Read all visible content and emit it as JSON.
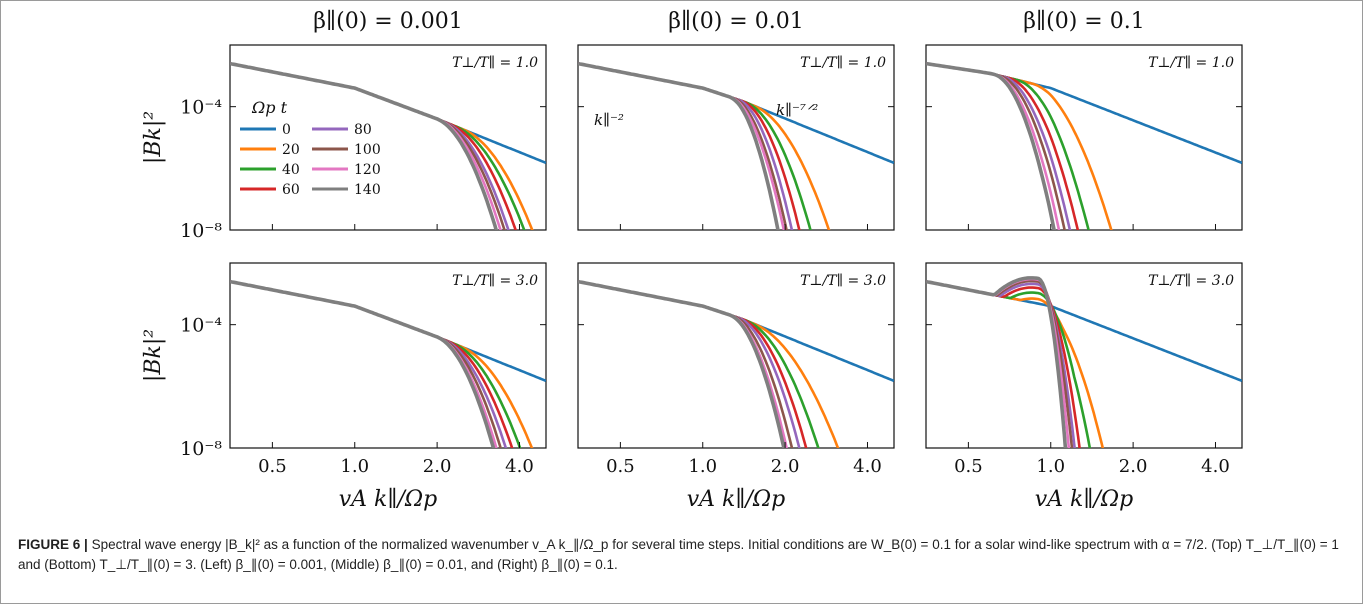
{
  "figure": {
    "caption_label": "FIGURE 6 |",
    "caption_text": "Spectral wave energy |B_k|² as a function of the normalized wavenumber v_A k_∥/Ω_p for several time steps. Initial conditions are W_B(0) = 0.1 for a solar wind-like spectrum with α = 7/2. (Top) T_⊥/T_∥(0) = 1 and (Bottom) T_⊥/T_∥(0) = 3. (Left) β_∥(0) = 0.001, (Middle) β_∥(0) = 0.01, and (Right) β_∥(0) = 0.1.",
    "column_titles": [
      "β∥(0) = 0.001",
      "β∥(0) = 0.01",
      "β∥(0) = 0.1"
    ],
    "row_labels": [
      "T⊥/T∥ = 1.0",
      "T⊥/T∥ = 3.0"
    ],
    "ylabel": "|Bk|²",
    "xlabel": "vA k∥/Ωp",
    "legend_title": "Ωp t",
    "annotations": {
      "k2": "k∥⁻²",
      "k72": "k∥⁻⁷ᐟ²"
    }
  },
  "colors": {
    "0": "#1f77b4",
    "20": "#ff7f0e",
    "40": "#2ca02c",
    "60": "#d62728",
    "80": "#9467bd",
    "100": "#8c564b",
    "120": "#e377c2",
    "140": "#7f7f7f"
  },
  "chart_data": {
    "type": "line",
    "log_axes": true,
    "ylim": [
      1e-08,
      0.01
    ],
    "yticks": [
      "10⁻⁴",
      "10⁻⁸"
    ],
    "series_names": [
      "0",
      "20",
      "40",
      "60",
      "80",
      "100",
      "120",
      "140"
    ],
    "panels": [
      {
        "column": "β∥(0) = 0.001",
        "row": "T⊥/T∥ = 1.0",
        "xlim": [
          0.35,
          5.0
        ],
        "xticks": [
          0.5,
          1.0,
          2.0,
          4.0
        ],
        "xtick_labels": [
          "0.5",
          "1.0",
          "2.0",
          "4.0"
        ],
        "label": "T⊥/T∥ = 1.0",
        "has_legend": true,
        "base_curve": [
          [
            0.35,
            0.0025
          ],
          [
            1.0,
            0.0004
          ],
          [
            2.0,
            4e-05
          ],
          [
            5.0,
            1.5e-06
          ]
        ],
        "cutoffs": [
          [
            20,
            2.5,
            5.0
          ],
          [
            40,
            2.35,
            4.6
          ],
          [
            60,
            2.25,
            4.2
          ],
          [
            80,
            2.15,
            3.9
          ],
          [
            100,
            2.1,
            3.75
          ],
          [
            120,
            2.05,
            3.6
          ],
          [
            140,
            2.0,
            3.45
          ]
        ]
      },
      {
        "column": "β∥(0) = 0.01",
        "row": "T⊥/T∥ = 1.0",
        "xlim": [
          0.35,
          5.0
        ],
        "xticks": [
          0.5,
          1.0,
          2.0,
          4.0
        ],
        "xtick_labels": [
          "0.5",
          "1.0",
          "2.0",
          "4.0"
        ],
        "label": "T⊥/T∥ = 1.0",
        "has_slope_labels": true,
        "base_curve": [
          [
            0.35,
            0.0025
          ],
          [
            1.0,
            0.0004
          ],
          [
            1.4,
            0.00015
          ],
          [
            5.0,
            1.5e-06
          ]
        ],
        "cutoffs": [
          [
            20,
            1.55,
            3.0
          ],
          [
            40,
            1.45,
            2.5
          ],
          [
            60,
            1.4,
            2.25
          ],
          [
            80,
            1.35,
            2.1
          ],
          [
            100,
            1.3,
            2.0
          ],
          [
            120,
            1.27,
            1.95
          ],
          [
            140,
            1.25,
            1.85
          ]
        ]
      },
      {
        "column": "β∥(0) = 0.1",
        "row": "T⊥/T∥ = 1.0",
        "xlim": [
          0.35,
          5.0
        ],
        "xticks": [
          0.5,
          1.0,
          2.0,
          4.0
        ],
        "xtick_labels": [
          "0.5",
          "1.0",
          "2.0",
          "4.0"
        ],
        "label": "T⊥/T∥ = 1.0",
        "base_curve": [
          [
            0.35,
            0.0025
          ],
          [
            0.6,
            0.0012
          ],
          [
            1.0,
            0.0004
          ],
          [
            5.0,
            1.5e-06
          ]
        ],
        "cutoffs": [
          [
            20,
            0.85,
            1.6
          ],
          [
            40,
            0.75,
            1.3
          ],
          [
            60,
            0.7,
            1.18
          ],
          [
            80,
            0.67,
            1.1
          ],
          [
            100,
            0.65,
            1.05
          ],
          [
            120,
            0.63,
            1.0
          ],
          [
            140,
            0.62,
            0.96
          ]
        ]
      },
      {
        "column": "β∥(0) = 0.001",
        "row": "T⊥/T∥ = 3.0",
        "xlim": [
          0.35,
          5.0
        ],
        "xticks": [
          0.5,
          1.0,
          2.0,
          4.0
        ],
        "xtick_labels": [
          "0.5",
          "1.0",
          "2.0",
          "4.0"
        ],
        "label": "T⊥/T∥ = 3.0",
        "base_curve": [
          [
            0.35,
            0.0025
          ],
          [
            1.0,
            0.0004
          ],
          [
            2.0,
            4e-05
          ],
          [
            5.0,
            1.5e-06
          ]
        ],
        "cutoffs": [
          [
            20,
            2.45,
            5.0
          ],
          [
            40,
            2.3,
            4.4
          ],
          [
            60,
            2.2,
            4.05
          ],
          [
            80,
            2.12,
            3.8
          ],
          [
            100,
            2.08,
            3.6
          ],
          [
            120,
            2.03,
            3.45
          ],
          [
            140,
            2.0,
            3.35
          ]
        ]
      },
      {
        "column": "β∥(0) = 0.01",
        "row": "T⊥/T∥ = 3.0",
        "xlim": [
          0.35,
          5.0
        ],
        "xticks": [
          0.5,
          1.0,
          2.0,
          4.0
        ],
        "xtick_labels": [
          "0.5",
          "1.0",
          "2.0",
          "4.0"
        ],
        "label": "T⊥/T∥ = 3.0",
        "base_curve": [
          [
            0.35,
            0.0025
          ],
          [
            1.0,
            0.0004
          ],
          [
            1.4,
            0.00015
          ],
          [
            5.0,
            1.5e-06
          ]
        ],
        "cutoffs": [
          [
            20,
            1.55,
            3.3
          ],
          [
            40,
            1.45,
            2.7
          ],
          [
            60,
            1.4,
            2.4
          ],
          [
            80,
            1.35,
            2.25
          ],
          [
            100,
            1.3,
            2.1
          ],
          [
            120,
            1.27,
            2.0
          ],
          [
            140,
            1.25,
            1.95
          ]
        ]
      },
      {
        "column": "β∥(0) = 0.1",
        "row": "T⊥/T∥ = 3.0",
        "xlim": [
          0.35,
          5.0
        ],
        "xticks": [
          0.5,
          1.0,
          2.0,
          4.0
        ],
        "xtick_labels": [
          "0.5",
          "1.0",
          "2.0",
          "4.0"
        ],
        "label": "T⊥/T∥ = 3.0",
        "base_curve": [
          [
            0.35,
            0.0025
          ],
          [
            1.0,
            0.0004
          ],
          [
            5.0,
            1.5e-06
          ]
        ],
        "bump": [
          [
            20,
            0.0007,
            1.95
          ],
          [
            40,
            0.0011,
            1.65
          ],
          [
            60,
            0.0016,
            1.45
          ],
          [
            80,
            0.0021,
            1.35
          ],
          [
            100,
            0.0026,
            1.3
          ],
          [
            120,
            0.003,
            1.25
          ],
          [
            140,
            0.0033,
            1.2
          ]
        ]
      }
    ]
  }
}
